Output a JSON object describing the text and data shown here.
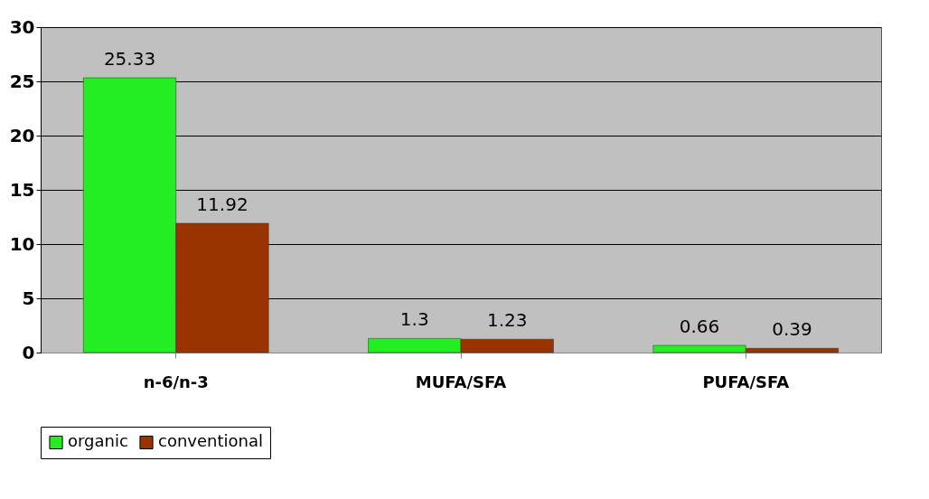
{
  "chart_data": {
    "type": "bar",
    "categories": [
      "n-6/n-3",
      "MUFA/SFA",
      "PUFA/SFA"
    ],
    "series": [
      {
        "name": "organic",
        "color": "#22ee22",
        "values": [
          25.33,
          1.3,
          0.66
        ]
      },
      {
        "name": "conventional",
        "color": "#993300",
        "values": [
          11.92,
          1.23,
          0.39
        ]
      }
    ],
    "ylim": [
      0,
      30
    ],
    "yticks": [
      0,
      5,
      10,
      15,
      20,
      25,
      30
    ],
    "grid": "y",
    "legend": "bottom",
    "data_labels": true
  }
}
